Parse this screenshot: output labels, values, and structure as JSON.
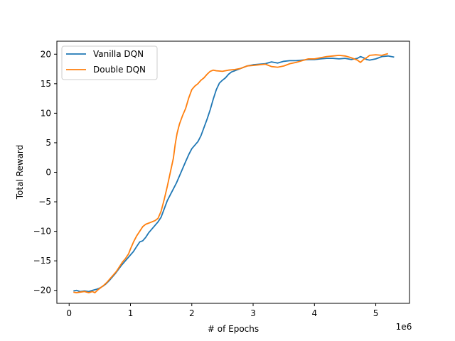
{
  "chart_data": {
    "type": "line",
    "title": "",
    "xlabel": "# of Epochs",
    "ylabel": "Total Reward",
    "x_offset_label": "1e6",
    "xlim": [
      -0.2,
      5.55
    ],
    "ylim": [
      -22.2,
      22.2
    ],
    "x_ticks": [
      0,
      1,
      2,
      3,
      4,
      5
    ],
    "x_tick_labels": [
      "0",
      "1",
      "2",
      "3",
      "4",
      "5"
    ],
    "y_ticks": [
      -20,
      -15,
      -10,
      -5,
      0,
      5,
      10,
      15,
      20
    ],
    "y_tick_labels": [
      "−20",
      "−15",
      "−10",
      "−5",
      "0",
      "5",
      "10",
      "15",
      "20"
    ],
    "grid": false,
    "legend_position": "top-left",
    "series": [
      {
        "name": "Vanilla DQN",
        "color": "#1f77b4",
        "points": [
          [
            0.07,
            -20.1
          ],
          [
            0.12,
            -20.0
          ],
          [
            0.18,
            -20.2
          ],
          [
            0.25,
            -20.1
          ],
          [
            0.32,
            -20.2
          ],
          [
            0.38,
            -20.0
          ],
          [
            0.45,
            -19.8
          ],
          [
            0.5,
            -19.6
          ],
          [
            0.55,
            -19.3
          ],
          [
            0.6,
            -18.9
          ],
          [
            0.65,
            -18.4
          ],
          [
            0.7,
            -17.8
          ],
          [
            0.75,
            -17.2
          ],
          [
            0.8,
            -16.5
          ],
          [
            0.85,
            -15.8
          ],
          [
            0.9,
            -15.2
          ],
          [
            0.95,
            -14.6
          ],
          [
            1.0,
            -14.0
          ],
          [
            1.05,
            -13.4
          ],
          [
            1.1,
            -12.6
          ],
          [
            1.15,
            -11.8
          ],
          [
            1.2,
            -11.6
          ],
          [
            1.25,
            -11.0
          ],
          [
            1.3,
            -10.2
          ],
          [
            1.35,
            -9.6
          ],
          [
            1.4,
            -9.0
          ],
          [
            1.45,
            -8.4
          ],
          [
            1.5,
            -7.6
          ],
          [
            1.55,
            -6.2
          ],
          [
            1.6,
            -4.8
          ],
          [
            1.65,
            -3.8
          ],
          [
            1.7,
            -2.8
          ],
          [
            1.75,
            -1.8
          ],
          [
            1.8,
            -0.6
          ],
          [
            1.85,
            0.6
          ],
          [
            1.9,
            1.8
          ],
          [
            1.95,
            3.0
          ],
          [
            2.0,
            4.0
          ],
          [
            2.05,
            4.6
          ],
          [
            2.1,
            5.2
          ],
          [
            2.15,
            6.2
          ],
          [
            2.2,
            7.6
          ],
          [
            2.25,
            9.0
          ],
          [
            2.3,
            10.6
          ],
          [
            2.35,
            12.4
          ],
          [
            2.4,
            14.0
          ],
          [
            2.45,
            15.1
          ],
          [
            2.5,
            15.6
          ],
          [
            2.55,
            16.0
          ],
          [
            2.6,
            16.6
          ],
          [
            2.65,
            17.0
          ],
          [
            2.7,
            17.2
          ],
          [
            2.75,
            17.4
          ],
          [
            2.8,
            17.6
          ],
          [
            2.85,
            17.8
          ],
          [
            2.9,
            18.0
          ],
          [
            3.0,
            18.2
          ],
          [
            3.1,
            18.3
          ],
          [
            3.2,
            18.4
          ],
          [
            3.3,
            18.7
          ],
          [
            3.4,
            18.5
          ],
          [
            3.5,
            18.8
          ],
          [
            3.6,
            18.9
          ],
          [
            3.7,
            18.9
          ],
          [
            3.8,
            19.0
          ],
          [
            3.9,
            19.1
          ],
          [
            4.0,
            19.1
          ],
          [
            4.1,
            19.2
          ],
          [
            4.2,
            19.3
          ],
          [
            4.3,
            19.3
          ],
          [
            4.4,
            19.2
          ],
          [
            4.5,
            19.3
          ],
          [
            4.6,
            19.1
          ],
          [
            4.7,
            19.3
          ],
          [
            4.75,
            19.6
          ],
          [
            4.8,
            19.4
          ],
          [
            4.85,
            19.1
          ],
          [
            4.9,
            19.0
          ],
          [
            5.0,
            19.2
          ],
          [
            5.1,
            19.6
          ],
          [
            5.2,
            19.7
          ],
          [
            5.3,
            19.5
          ]
        ]
      },
      {
        "name": "Double DQN",
        "color": "#ff7f0e",
        "points": [
          [
            0.07,
            -20.3
          ],
          [
            0.12,
            -20.4
          ],
          [
            0.18,
            -20.3
          ],
          [
            0.25,
            -20.2
          ],
          [
            0.32,
            -20.4
          ],
          [
            0.38,
            -20.2
          ],
          [
            0.42,
            -20.4
          ],
          [
            0.47,
            -19.9
          ],
          [
            0.52,
            -19.5
          ],
          [
            0.57,
            -19.1
          ],
          [
            0.62,
            -18.6
          ],
          [
            0.67,
            -18.0
          ],
          [
            0.72,
            -17.4
          ],
          [
            0.77,
            -16.8
          ],
          [
            0.82,
            -16.0
          ],
          [
            0.87,
            -15.2
          ],
          [
            0.92,
            -14.6
          ],
          [
            0.97,
            -13.8
          ],
          [
            1.0,
            -13.0
          ],
          [
            1.05,
            -11.8
          ],
          [
            1.1,
            -10.8
          ],
          [
            1.15,
            -10.0
          ],
          [
            1.2,
            -9.2
          ],
          [
            1.25,
            -8.8
          ],
          [
            1.3,
            -8.6
          ],
          [
            1.35,
            -8.4
          ],
          [
            1.4,
            -8.2
          ],
          [
            1.45,
            -7.8
          ],
          [
            1.5,
            -6.6
          ],
          [
            1.55,
            -4.6
          ],
          [
            1.6,
            -2.4
          ],
          [
            1.65,
            0.0
          ],
          [
            1.7,
            2.4
          ],
          [
            1.73,
            4.8
          ],
          [
            1.76,
            6.6
          ],
          [
            1.8,
            8.2
          ],
          [
            1.85,
            9.6
          ],
          [
            1.9,
            10.8
          ],
          [
            1.95,
            12.6
          ],
          [
            2.0,
            14.0
          ],
          [
            2.05,
            14.6
          ],
          [
            2.1,
            15.0
          ],
          [
            2.15,
            15.6
          ],
          [
            2.2,
            16.0
          ],
          [
            2.25,
            16.6
          ],
          [
            2.3,
            17.1
          ],
          [
            2.35,
            17.3
          ],
          [
            2.4,
            17.2
          ],
          [
            2.5,
            17.1
          ],
          [
            2.6,
            17.3
          ],
          [
            2.7,
            17.4
          ],
          [
            2.8,
            17.6
          ],
          [
            2.9,
            18.0
          ],
          [
            3.0,
            18.1
          ],
          [
            3.1,
            18.2
          ],
          [
            3.2,
            18.3
          ],
          [
            3.3,
            17.9
          ],
          [
            3.4,
            17.8
          ],
          [
            3.5,
            18.0
          ],
          [
            3.6,
            18.4
          ],
          [
            3.7,
            18.6
          ],
          [
            3.8,
            18.9
          ],
          [
            3.9,
            19.2
          ],
          [
            4.0,
            19.2
          ],
          [
            4.1,
            19.4
          ],
          [
            4.2,
            19.6
          ],
          [
            4.3,
            19.7
          ],
          [
            4.4,
            19.8
          ],
          [
            4.5,
            19.7
          ],
          [
            4.6,
            19.4
          ],
          [
            4.7,
            19.0
          ],
          [
            4.75,
            18.6
          ],
          [
            4.8,
            19.1
          ],
          [
            4.85,
            19.4
          ],
          [
            4.9,
            19.8
          ],
          [
            5.0,
            19.9
          ],
          [
            5.1,
            19.8
          ],
          [
            5.2,
            20.1
          ]
        ]
      }
    ]
  }
}
